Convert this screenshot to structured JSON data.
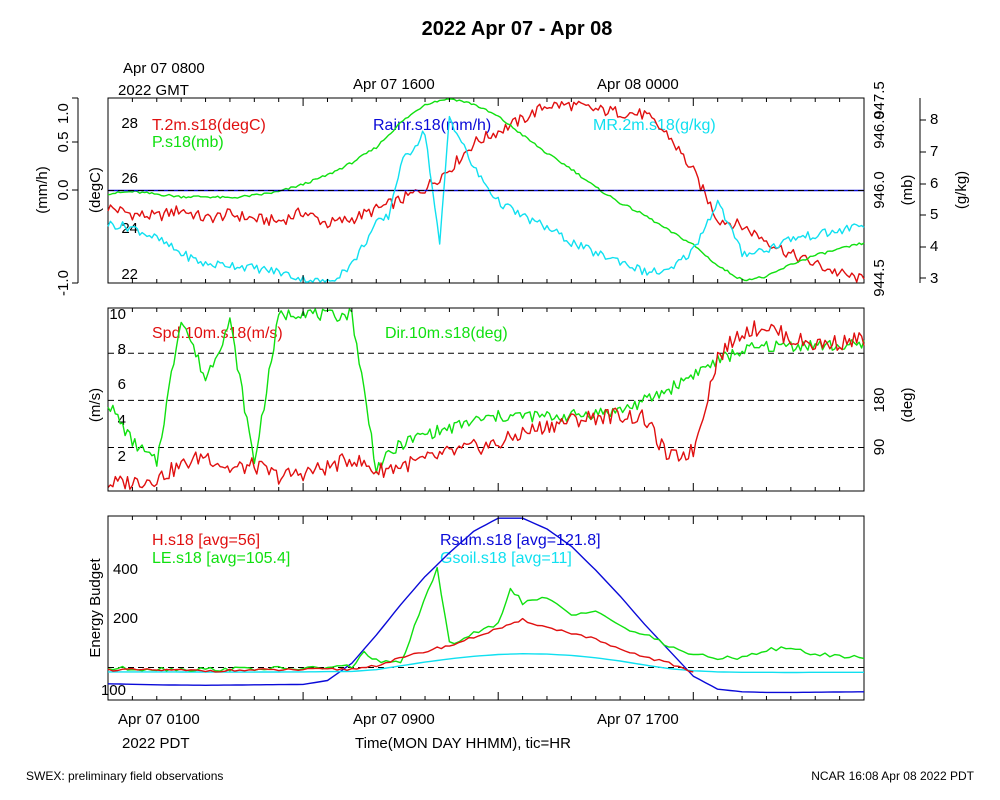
{
  "page": {
    "title": "2022 Apr 07 - Apr 08",
    "footer_left": "SWEX: preliminary field observations",
    "footer_right": "NCAR 16:08 Apr 08 2022 PDT",
    "top_time_label_1a": "Apr 07 0800",
    "top_time_label_1b": "2022 GMT",
    "top_time_label_2": "Apr 07 1600",
    "top_time_label_3": "Apr 08 0000",
    "bottom_time_label_1": "Apr 07 0100",
    "bottom_time_label_1b": "2022 PDT",
    "bottom_time_label_2": "Apr 07 0900",
    "bottom_time_label_3": "Apr 07 1700",
    "x_axis_title": "Time(MON DAY HHMM), tic=HR"
  },
  "colors": {
    "red": "#e01010",
    "green": "#10e010",
    "blue": "#0a0ad8",
    "cyan": "#10e0f0",
    "black": "#000000"
  },
  "chart_data": [
    {
      "type": "line",
      "panel": "top",
      "x_unit": "hours since Apr 07 0100 PDT",
      "xlim": [
        0,
        31
      ],
      "left_axes": [
        {
          "ylabel": "(degC)",
          "ylim": [
            21.8,
            29.6
          ],
          "ticks": [
            "22",
            "24",
            "26",
            "28"
          ]
        },
        {
          "ylabel": "(mm/h)",
          "ylim": [
            -1.0,
            1.0
          ],
          "ticks": [
            "-1.0",
            "0.0",
            "0.5",
            "1.0"
          ]
        }
      ],
      "right_axes": [
        {
          "ylabel": "(mb)",
          "ylim": [
            944.5,
            947.5
          ],
          "ticks": [
            "944.5",
            "946.0",
            "946.0",
            "947.5"
          ]
        },
        {
          "ylabel": "(g/kg)",
          "ylim": [
            3,
            8
          ],
          "ticks": [
            "3",
            "4",
            "5",
            "6",
            "7",
            "8"
          ]
        }
      ],
      "series": [
        {
          "name": "T.2m.s18(degC)",
          "color": "red",
          "axis": "degC",
          "x": [
            0,
            1,
            2,
            3,
            4,
            5,
            6,
            7,
            8,
            9,
            10,
            11,
            12,
            13,
            14,
            15,
            16,
            17,
            18,
            19,
            20,
            21,
            22,
            23,
            24,
            25,
            26,
            27,
            28,
            29,
            30,
            31
          ],
          "values": [
            25.0,
            24.7,
            24.6,
            24.9,
            24.5,
            24.7,
            24.5,
            24.4,
            24.8,
            24.3,
            24.5,
            24.9,
            25.3,
            25.8,
            26.6,
            27.7,
            28.2,
            28.7,
            29.3,
            29.3,
            29.1,
            29.0,
            28.9,
            28.0,
            26.5,
            24.5,
            24.2,
            23.6,
            23.0,
            22.6,
            22.2,
            21.9
          ]
        },
        {
          "name": "P.s18(mb)",
          "color": "green",
          "axis": "mb",
          "x": [
            0,
            1,
            2,
            3,
            4,
            5,
            6,
            7,
            8,
            9,
            10,
            11,
            12,
            13,
            14,
            15,
            16,
            17,
            18,
            19,
            20,
            21,
            22,
            23,
            24,
            25,
            26,
            27,
            28,
            29,
            30,
            31
          ],
          "values": [
            945.95,
            945.98,
            945.94,
            945.9,
            945.9,
            945.88,
            945.92,
            945.98,
            946.1,
            946.25,
            946.45,
            946.7,
            947.1,
            947.4,
            947.5,
            947.4,
            947.2,
            946.9,
            946.6,
            946.35,
            946.05,
            945.8,
            945.6,
            945.35,
            945.12,
            944.78,
            944.55,
            944.6,
            944.8,
            944.95,
            945.05,
            945.15
          ]
        },
        {
          "name": "Rainr.s18(mm/h)",
          "color": "blue",
          "axis": "mm/h",
          "x": [
            0,
            31
          ],
          "values": [
            0.0,
            0.0
          ]
        },
        {
          "name": "MR.2m.s18(g/kg)",
          "color": "cyan",
          "axis": "g/kg",
          "x": [
            0,
            1,
            2,
            3,
            4,
            5,
            6,
            7,
            8,
            9,
            10,
            11,
            11.5,
            12,
            13,
            13.6,
            14,
            14.5,
            15,
            16,
            17,
            18,
            19,
            20,
            21,
            22,
            23,
            24,
            25,
            26,
            27,
            28,
            29,
            30,
            31
          ],
          "values": [
            4.6,
            4.5,
            4.2,
            3.8,
            3.5,
            3.5,
            3.4,
            3.3,
            3.1,
            3.0,
            3.5,
            4.6,
            4.8,
            6.2,
            7.1,
            4.0,
            7.5,
            6.8,
            6.1,
            5.2,
            4.8,
            4.5,
            4.1,
            3.8,
            3.6,
            3.3,
            3.3,
            3.9,
            5.2,
            3.8,
            3.9,
            4.2,
            4.3,
            4.4,
            4.6
          ]
        }
      ]
    },
    {
      "type": "line",
      "panel": "middle",
      "xlim": [
        0,
        31
      ],
      "left_axes": [
        {
          "ylabel": "(m/s)",
          "ylim": [
            0.2,
            10.3
          ],
          "ticks": [
            "2",
            "4",
            "6",
            "8",
            "10"
          ]
        }
      ],
      "right_axes": [
        {
          "ylabel": "(deg)",
          "ticks": [
            "90",
            "180"
          ]
        }
      ],
      "series": [
        {
          "name": "Spd.10m.s18(m/s)",
          "color": "red",
          "axis": "m/s",
          "x": [
            0,
            1,
            2,
            3,
            4,
            5,
            6,
            7,
            8,
            9,
            10,
            11,
            12,
            13,
            14,
            15,
            16,
            17,
            18,
            19,
            20,
            21,
            22,
            23,
            24,
            25,
            26,
            27,
            28,
            29,
            30,
            31
          ],
          "values": [
            0.6,
            0.7,
            0.9,
            1.6,
            2.2,
            1.4,
            1.6,
            1.0,
            1.2,
            1.5,
            2.0,
            1.3,
            1.6,
            1.9,
            2.3,
            2.6,
            2.8,
            3.4,
            3.8,
            4.1,
            4.3,
            4.4,
            4.2,
            2.0,
            2.4,
            7.6,
            9.0,
            9.3,
            8.6,
            8.3,
            8.4,
            8.6
          ]
        },
        {
          "name": "Dir.10m.s18(deg)",
          "color": "green",
          "axis": "deg",
          "x": [
            0,
            1,
            2,
            3,
            4,
            5,
            6,
            7,
            8,
            9,
            10,
            11,
            12,
            13,
            14,
            15,
            16,
            17,
            18,
            19,
            20,
            21,
            22,
            23,
            24,
            25,
            26,
            27,
            28,
            29,
            30,
            31
          ],
          "values": [
            175,
            100,
            60,
            340,
            220,
            330,
            60,
            340,
            350,
            340,
            345,
            50,
            95,
            115,
            125,
            140,
            148,
            150,
            148,
            150,
            155,
            160,
            178,
            200,
            230,
            255,
            275,
            282,
            285,
            285,
            283,
            284
          ]
        }
      ],
      "reference_lines_ms": [
        2.6,
        5.2,
        7.8
      ]
    },
    {
      "type": "line",
      "panel": "bottom",
      "xlim": [
        0,
        31
      ],
      "left_axes": [
        {
          "ylabel": "Energy Budget",
          "ylim": [
            -150,
            700
          ],
          "ticks": [
            "100",
            "200",
            "400"
          ]
        }
      ],
      "series": [
        {
          "name": "H.s18 [avg=56]",
          "color": "red",
          "x": [
            0,
            2,
            4,
            6,
            8,
            10,
            11,
            13.5,
            14,
            16,
            16.5,
            17,
            18,
            19,
            20,
            21,
            22,
            23,
            24
          ],
          "values": [
            -10,
            -12,
            -15,
            -12,
            -10,
            -8,
            10,
            90,
            100,
            180,
            195,
            220,
            185,
            160,
            130,
            80,
            50,
            20,
            -20
          ]
        },
        {
          "name": "LE.s18 [avg=105.4]",
          "color": "green",
          "x": [
            0,
            2,
            4,
            6,
            8,
            10,
            10.5,
            11,
            12,
            13.5,
            14,
            16,
            16.5,
            17,
            18,
            19,
            20,
            21,
            22,
            23,
            24,
            25,
            26,
            27,
            28,
            29,
            30,
            31
          ],
          "values": [
            -5,
            -6,
            -8,
            -5,
            -5,
            5,
            70,
            30,
            20,
            460,
            110,
            200,
            370,
            300,
            320,
            240,
            270,
            190,
            150,
            100,
            60,
            40,
            50,
            80,
            90,
            60,
            55,
            45
          ]
        },
        {
          "name": "Rsum.s18 [avg=121.8]",
          "color": "blue",
          "x": [
            0,
            2,
            4,
            6,
            8,
            9,
            10,
            11,
            12,
            13,
            14,
            15,
            16,
            17,
            18,
            19,
            20,
            21,
            22,
            23,
            24,
            25,
            26,
            27,
            28,
            29,
            30,
            31
          ],
          "values": [
            -75,
            -80,
            -82,
            -80,
            -78,
            -60,
            20,
            150,
            290,
            420,
            530,
            630,
            690,
            690,
            640,
            560,
            450,
            330,
            200,
            80,
            -40,
            -100,
            -112,
            -115,
            -115,
            -114,
            -113,
            -112
          ]
        },
        {
          "name": "Gsoil.s18 [avg=11]",
          "color": "cyan",
          "x": [
            0,
            2,
            4,
            6,
            8,
            10,
            11,
            12,
            13,
            14,
            15,
            16,
            17,
            18,
            19,
            20,
            21,
            22,
            23,
            24,
            25,
            26,
            27,
            28,
            29,
            30,
            31
          ],
          "values": [
            -20,
            -20,
            -21,
            -21,
            -20,
            -18,
            -10,
            8,
            25,
            40,
            52,
            60,
            64,
            62,
            56,
            45,
            30,
            12,
            -5,
            -15,
            -20,
            -22,
            -22,
            -23,
            -22,
            -22,
            -22
          ]
        }
      ],
      "reference_lines": [
        0
      ]
    }
  ]
}
